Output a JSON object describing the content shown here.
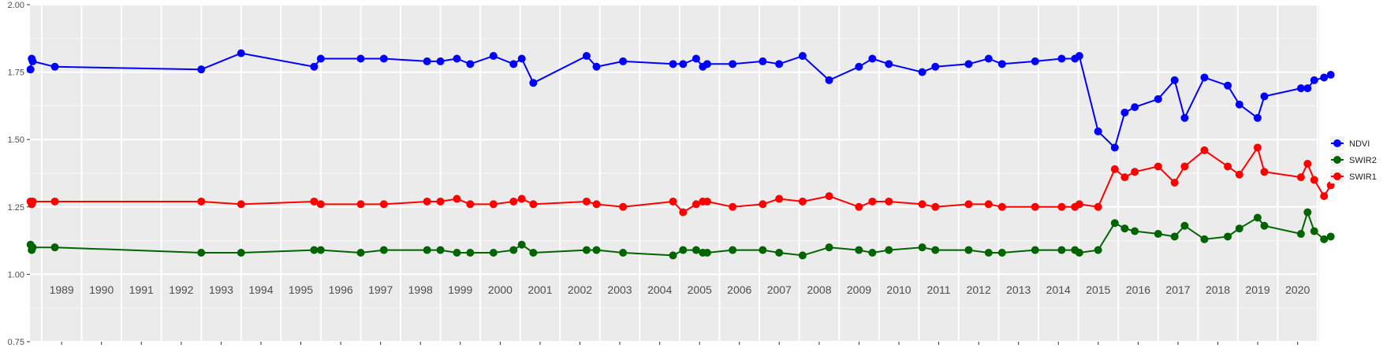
{
  "chart_data": {
    "type": "line",
    "title": "",
    "xlabel": "",
    "ylabel": "",
    "xlim": [
      "1988-09-15",
      "2021-01-15"
    ],
    "ylim": [
      0.75,
      2.0
    ],
    "y_ticks": [
      0.75,
      1.0,
      1.25,
      1.5,
      1.75,
      2.0
    ],
    "y_tick_labels": [
      "0.75",
      "1.00",
      "1.25",
      "1.50",
      "1.75",
      "2.00"
    ],
    "x_tick_labels": [
      "1989",
      "1990",
      "1991",
      "1992",
      "1993",
      "1994",
      "1995",
      "1996",
      "1997",
      "1998",
      "1999",
      "2000",
      "2001",
      "2002",
      "2003",
      "2004",
      "2005",
      "2006",
      "2007",
      "2008",
      "2009",
      "2010",
      "2011",
      "2012",
      "2013",
      "2014",
      "2015",
      "2016",
      "2017",
      "2018",
      "2019",
      "2020"
    ],
    "x_label_position": "inside panel, bottom",
    "grid": true,
    "background": "#ebebeb",
    "legend_position": "right",
    "series": [
      {
        "name": "NDVI",
        "color": "#0000ff",
        "x": [
          "1988-09-20",
          "1988-10-01",
          "1988-10-10",
          "1989-05-01",
          "1993-01-01",
          "1994-01-01",
          "1995-11-01",
          "1996-01-01",
          "1997-01-01",
          "1997-08-01",
          "1998-09-01",
          "1999-01-01",
          "1999-06-01",
          "1999-10-01",
          "2000-05-01",
          "2000-11-01",
          "2001-01-15",
          "2001-05-01",
          "2002-09-01",
          "2002-12-01",
          "2003-08-01",
          "2004-11-01",
          "2005-02-01",
          "2005-06-01",
          "2005-08-01",
          "2005-09-10",
          "2006-05-01",
          "2007-02-01",
          "2007-07-01",
          "2008-02-01",
          "2008-10-01",
          "2009-07-01",
          "2009-11-01",
          "2010-04-01",
          "2011-02-01",
          "2011-06-01",
          "2012-04-01",
          "2012-10-01",
          "2013-02-01",
          "2013-12-01",
          "2014-08-01",
          "2014-12-01",
          "2015-01-10",
          "2015-07-01",
          "2015-12-01",
          "2016-03-01",
          "2016-06-01",
          "2017-01-01",
          "2017-06-01",
          "2017-09-01",
          "2018-03-01",
          "2018-10-01",
          "2019-01-15",
          "2019-07-01",
          "2019-09-01",
          "2020-08-01",
          "2020-10-01",
          "2020-12-01",
          "2021-03-01",
          "2021-05-01"
        ],
        "y": [
          1.76,
          1.8,
          1.79,
          1.77,
          1.76,
          1.82,
          1.77,
          1.8,
          1.8,
          1.8,
          1.79,
          1.79,
          1.8,
          1.78,
          1.81,
          1.78,
          1.8,
          1.71,
          1.81,
          1.77,
          1.79,
          1.78,
          1.78,
          1.8,
          1.77,
          1.78,
          1.78,
          1.79,
          1.78,
          1.81,
          1.72,
          1.77,
          1.8,
          1.78,
          1.75,
          1.77,
          1.78,
          1.8,
          1.78,
          1.79,
          1.8,
          1.8,
          1.81,
          1.53,
          1.47,
          1.6,
          1.62,
          1.65,
          1.72,
          1.58,
          1.73,
          1.7,
          1.63,
          1.58,
          1.66,
          1.69,
          1.69,
          1.72,
          1.73,
          1.74
        ]
      },
      {
        "name": "SWIR2",
        "color": "#006400",
        "x": [
          "1988-09-20",
          "1988-10-01",
          "1988-10-10",
          "1989-05-01",
          "1993-01-01",
          "1994-01-01",
          "1995-11-01",
          "1996-01-01",
          "1997-01-01",
          "1997-08-01",
          "1998-09-01",
          "1999-01-01",
          "1999-06-01",
          "1999-10-01",
          "2000-05-01",
          "2000-11-01",
          "2001-01-15",
          "2001-05-01",
          "2002-09-01",
          "2002-12-01",
          "2003-08-01",
          "2004-11-01",
          "2005-02-01",
          "2005-06-01",
          "2005-08-01",
          "2005-09-10",
          "2006-05-01",
          "2007-02-01",
          "2007-07-01",
          "2008-02-01",
          "2008-10-01",
          "2009-07-01",
          "2009-11-01",
          "2010-04-01",
          "2011-02-01",
          "2011-06-01",
          "2012-04-01",
          "2012-10-01",
          "2013-02-01",
          "2013-12-01",
          "2014-08-01",
          "2014-12-01",
          "2015-01-10",
          "2015-07-01",
          "2015-12-01",
          "2016-03-01",
          "2016-06-01",
          "2017-01-01",
          "2017-06-01",
          "2017-09-01",
          "2018-03-01",
          "2018-10-01",
          "2019-01-15",
          "2019-07-01",
          "2019-09-01",
          "2020-08-01",
          "2020-10-01",
          "2020-12-01",
          "2021-03-01",
          "2021-05-01"
        ],
        "y": [
          1.11,
          1.09,
          1.1,
          1.1,
          1.08,
          1.08,
          1.09,
          1.09,
          1.08,
          1.09,
          1.09,
          1.09,
          1.08,
          1.08,
          1.08,
          1.09,
          1.11,
          1.08,
          1.09,
          1.09,
          1.08,
          1.07,
          1.09,
          1.09,
          1.08,
          1.08,
          1.09,
          1.09,
          1.08,
          1.07,
          1.1,
          1.09,
          1.08,
          1.09,
          1.1,
          1.09,
          1.09,
          1.08,
          1.08,
          1.09,
          1.09,
          1.09,
          1.08,
          1.09,
          1.19,
          1.17,
          1.16,
          1.15,
          1.14,
          1.18,
          1.13,
          1.14,
          1.17,
          1.21,
          1.18,
          1.15,
          1.23,
          1.16,
          1.13,
          1.14
        ]
      },
      {
        "name": "SWIR1",
        "color": "#ff0000",
        "x": [
          "1988-09-20",
          "1988-10-01",
          "1988-10-10",
          "1989-05-01",
          "1993-01-01",
          "1994-01-01",
          "1995-11-01",
          "1996-01-01",
          "1997-01-01",
          "1997-08-01",
          "1998-09-01",
          "1999-01-01",
          "1999-06-01",
          "1999-10-01",
          "2000-05-01",
          "2000-11-01",
          "2001-01-15",
          "2001-05-01",
          "2002-09-01",
          "2002-12-01",
          "2003-08-01",
          "2004-11-01",
          "2005-02-01",
          "2005-06-01",
          "2005-08-01",
          "2005-09-10",
          "2006-05-01",
          "2007-02-01",
          "2007-07-01",
          "2008-02-01",
          "2008-10-01",
          "2009-07-01",
          "2009-11-01",
          "2010-04-01",
          "2011-02-01",
          "2011-06-01",
          "2012-04-01",
          "2012-10-01",
          "2013-02-01",
          "2013-12-01",
          "2014-08-01",
          "2014-12-01",
          "2015-01-10",
          "2015-07-01",
          "2015-12-01",
          "2016-03-01",
          "2016-06-01",
          "2017-01-01",
          "2017-06-01",
          "2017-09-01",
          "2018-03-01",
          "2018-10-01",
          "2019-01-15",
          "2019-07-01",
          "2019-09-01",
          "2020-08-01",
          "2020-10-01",
          "2020-12-01",
          "2021-03-01",
          "2021-05-01"
        ],
        "y": [
          1.27,
          1.26,
          1.27,
          1.27,
          1.27,
          1.26,
          1.27,
          1.26,
          1.26,
          1.26,
          1.27,
          1.27,
          1.28,
          1.26,
          1.26,
          1.27,
          1.28,
          1.26,
          1.27,
          1.26,
          1.25,
          1.27,
          1.23,
          1.26,
          1.27,
          1.27,
          1.25,
          1.26,
          1.28,
          1.27,
          1.29,
          1.25,
          1.27,
          1.27,
          1.26,
          1.25,
          1.26,
          1.26,
          1.25,
          1.25,
          1.25,
          1.25,
          1.26,
          1.25,
          1.39,
          1.36,
          1.38,
          1.4,
          1.34,
          1.4,
          1.46,
          1.4,
          1.37,
          1.47,
          1.38,
          1.36,
          1.41,
          1.35,
          1.29,
          1.33
        ]
      }
    ]
  }
}
